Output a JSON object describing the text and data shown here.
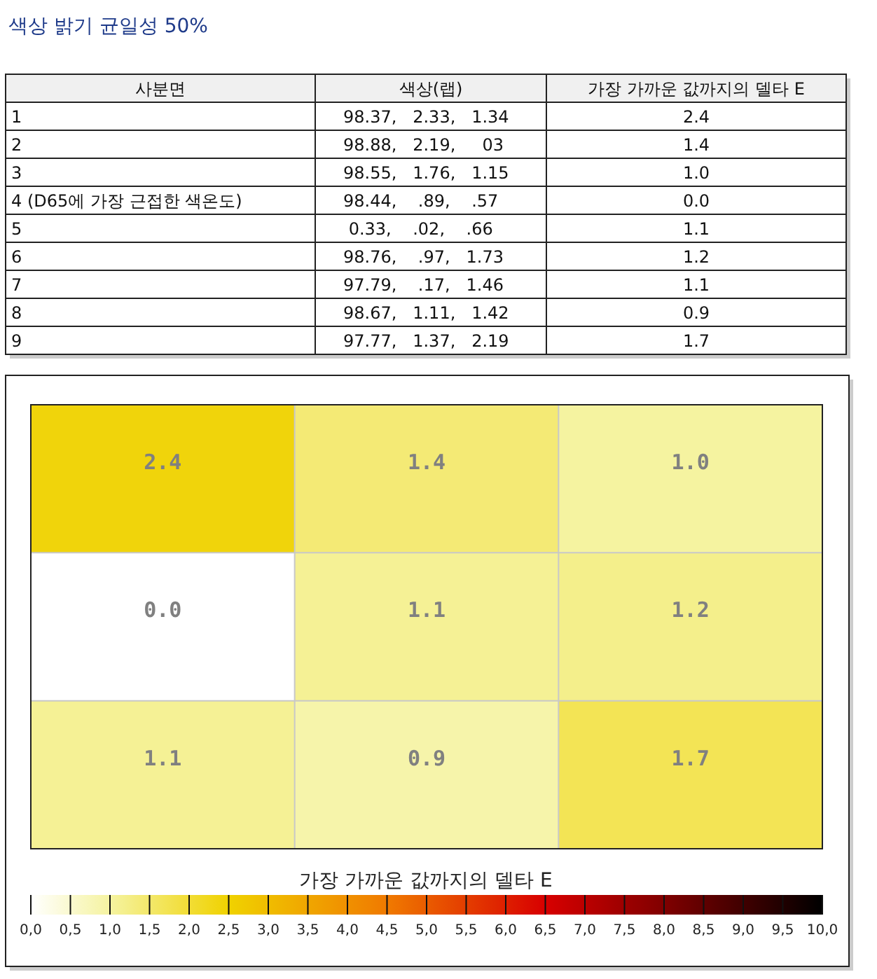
{
  "chart_data": [
    {
      "type": "other",
      "title": "색상 밝기 균일성 50%",
      "annotations": [
        "사분면",
        "색상(랩)",
        "가장 가까운 값까지의 델타 E",
        "1",
        "98.37,   2.33,   1.34",
        "2.4",
        "2",
        "98.88,   2.19,     03",
        "1.4",
        "3",
        "98.55,   1.76,   1.15",
        "1.0",
        "4 (D65에 가장 근접한 색온도)",
        "98.44,    .89,    .57",
        "0.0",
        "5",
        " 0.33,    .02,    .66",
        "1.1",
        "6",
        "98.76,    .97,   1.73",
        "1.2",
        "7",
        "97.79,    .17,   1.46",
        "1.1",
        "8",
        "98.67,   1.11,   1.42",
        "0.9",
        "9",
        "97.77,   1.37,   2.19",
        "1.7"
      ]
    },
    {
      "type": "heatmap",
      "categories": [
        null,
        null,
        null
      ],
      "y_categories": [
        null,
        null,
        null
      ],
      "cells": [
        [
          2.4,
          1.4,
          1.0
        ],
        [
          0.0,
          1.1,
          1.2
        ],
        [
          1.1,
          0.9,
          1.7
        ]
      ],
      "cell_labels": [
        [
          "2.4",
          "1.4",
          "1.0"
        ],
        [
          "0.0",
          "1.1",
          "1.2"
        ],
        [
          "1.1",
          "0.9",
          "1.7"
        ]
      ],
      "data_labels": true,
      "grid": true,
      "clabel": "가장 가까운 값까지의 델타 E",
      "clim": [
        0,
        10
      ],
      "cticks": [
        {
          "value": 0,
          "label": "0,0"
        },
        {
          "value": 0.5,
          "label": "0,5"
        },
        {
          "value": 1,
          "label": "1,0"
        },
        {
          "value": 1.5,
          "label": "1,5"
        },
        {
          "value": 2,
          "label": "2,0"
        },
        {
          "value": 2.5,
          "label": "2,5"
        },
        {
          "value": 3,
          "label": "3,0"
        },
        {
          "value": 3.5,
          "label": "3,5"
        },
        {
          "value": 4,
          "label": "4,0"
        },
        {
          "value": 4.5,
          "label": "4,5"
        },
        {
          "value": 5,
          "label": "5,0"
        },
        {
          "value": 5.5,
          "label": "5,5"
        },
        {
          "value": 6,
          "label": "6,0"
        },
        {
          "value": 6.5,
          "label": "6,5"
        },
        {
          "value": 7,
          "label": "7,0"
        },
        {
          "value": 7.5,
          "label": "7,5"
        },
        {
          "value": 8,
          "label": "8,0"
        },
        {
          "value": 8.5,
          "label": "8,5"
        },
        {
          "value": 9,
          "label": "9,0"
        },
        {
          "value": 9.5,
          "label": "9,5"
        },
        {
          "value": 10,
          "label": "10,0"
        }
      ]
    }
  ]
}
